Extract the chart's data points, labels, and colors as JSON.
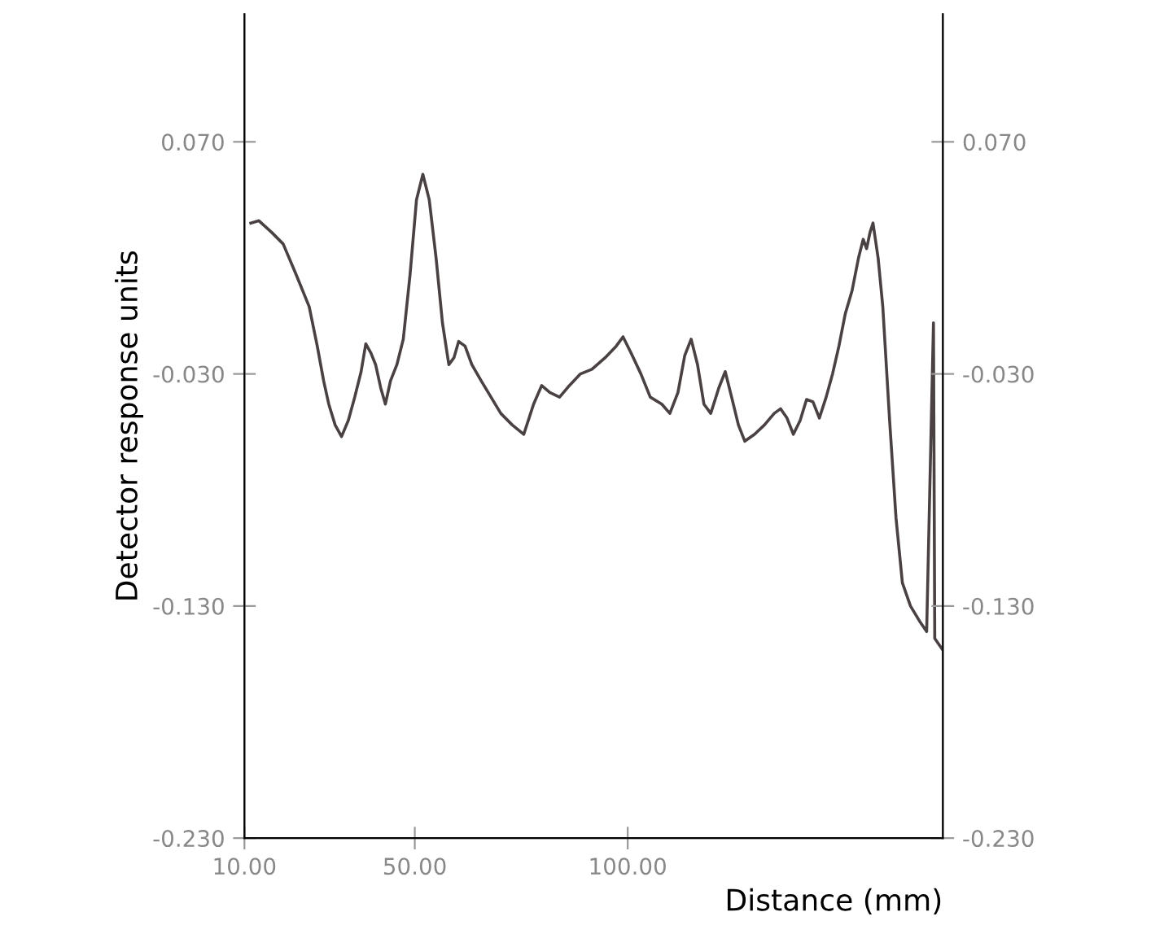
{
  "chart_data": {
    "type": "line",
    "xlabel": "Distance (mm)",
    "ylabel": "Detector response units",
    "xlim": [
      10,
      174
    ],
    "xticks": [
      {
        "value": 10,
        "label": "10.00"
      },
      {
        "value": 50,
        "label": "50.00"
      },
      {
        "value": 100,
        "label": "100.00"
      }
    ],
    "ylim": [
      -0.23,
      0.125
    ],
    "yticks": [
      {
        "value": 0.07,
        "label": "0.070"
      },
      {
        "value": -0.03,
        "label": "-0.030"
      },
      {
        "value": -0.13,
        "label": "-0.130"
      },
      {
        "value": -0.23,
        "label": "-0.230"
      }
    ],
    "y2lim": [
      -0.23,
      0.125
    ],
    "y2ticks": [
      {
        "value": 0.07,
        "label": "0.070"
      },
      {
        "value": -0.03,
        "label": "-0.030"
      },
      {
        "value": -0.13,
        "label": "-0.130"
      },
      {
        "value": -0.23,
        "label": "-0.230"
      }
    ],
    "grid": false,
    "legend": false,
    "series": [
      {
        "color": "#4a4242",
        "x": [
          11.5,
          13.4,
          16.4,
          19.1,
          22.1,
          25.2,
          27.1,
          28.6,
          29.8,
          31.3,
          32.8,
          34.4,
          35.9,
          37.4,
          38.5,
          39.7,
          40.8,
          42.0,
          43.1,
          44.3,
          45.8,
          47.3,
          48.9,
          50.4,
          51.9,
          53.4,
          55.0,
          56.5,
          58.0,
          59.2,
          60.3,
          61.8,
          63.4,
          65.6,
          67.9,
          70.2,
          72.9,
          75.6,
          77.9,
          79.8,
          81.7,
          84.0,
          86.3,
          88.9,
          91.6,
          94.7,
          97.3,
          98.9,
          100.8,
          103.1,
          105.3,
          108.0,
          109.9,
          111.8,
          113.4,
          114.9,
          116.4,
          117.9,
          119.5,
          121.4,
          122.9,
          124.4,
          126.0,
          127.5,
          129.8,
          132.1,
          134.4,
          135.9,
          137.4,
          138.9,
          140.5,
          142.0,
          143.5,
          145.0,
          146.6,
          148.1,
          149.6,
          151.1,
          152.7,
          154.2,
          155.3,
          156.1,
          156.9,
          157.6,
          158.8,
          159.9,
          161.5,
          163.0,
          164.5,
          166.4,
          168.7,
          170.2,
          171.8,
          172.1,
          174.0
        ],
        "values": [
          0.035,
          0.036,
          0.031,
          0.026,
          0.013,
          -0.001,
          -0.018,
          -0.033,
          -0.043,
          -0.052,
          -0.057,
          -0.05,
          -0.04,
          -0.029,
          -0.017,
          -0.021,
          -0.026,
          -0.036,
          -0.043,
          -0.033,
          -0.026,
          -0.015,
          0.013,
          0.045,
          0.056,
          0.045,
          0.02,
          -0.008,
          -0.026,
          -0.023,
          -0.016,
          -0.018,
          -0.026,
          -0.033,
          -0.04,
          -0.047,
          -0.052,
          -0.056,
          -0.043,
          -0.035,
          -0.038,
          -0.04,
          -0.035,
          -0.03,
          -0.028,
          -0.023,
          -0.018,
          -0.014,
          -0.021,
          -0.03,
          -0.04,
          -0.043,
          -0.047,
          -0.038,
          -0.022,
          -0.015,
          -0.026,
          -0.043,
          -0.047,
          -0.036,
          -0.029,
          -0.04,
          -0.052,
          -0.059,
          -0.056,
          -0.052,
          -0.047,
          -0.045,
          -0.049,
          -0.056,
          -0.05,
          -0.041,
          -0.042,
          -0.049,
          -0.04,
          -0.03,
          -0.018,
          -0.004,
          0.006,
          0.02,
          0.028,
          0.024,
          0.031,
          0.035,
          0.02,
          -0.001,
          -0.05,
          -0.092,
          -0.12,
          -0.13,
          -0.137,
          -0.141,
          -0.008,
          -0.144,
          -0.149
        ]
      }
    ]
  }
}
